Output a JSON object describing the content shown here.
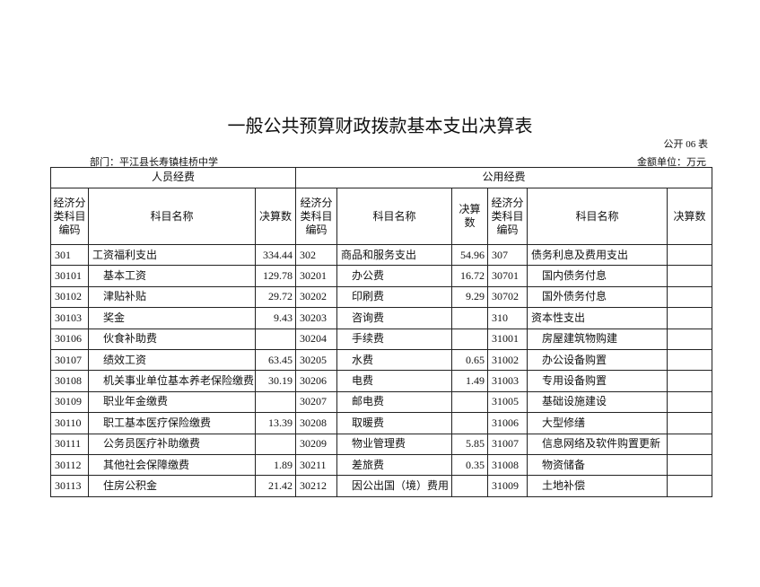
{
  "header": {
    "title": "一般公共预算财政拨款基本支出决算表",
    "form_no": "公开 06 表",
    "department": "部门：平江县长寿镇桂桥中学",
    "unit": "金额单位：万元"
  },
  "table": {
    "groups": [
      "人员经费",
      "公用经费"
    ],
    "columns": [
      "经济分类科目编码",
      "科目名称",
      "决算数",
      "经济分类科目编码",
      "科目名称",
      "决算数",
      "经济分类科目编码",
      "科目名称",
      "决算数"
    ],
    "rows": [
      [
        "301",
        "工资福利支出",
        334.44,
        "302",
        "商品和服务支出",
        54.96,
        "307",
        "债务利息及费用支出",
        null
      ],
      [
        "30101",
        "基本工资",
        129.78,
        "30201",
        "办公费",
        16.72,
        "30701",
        "国内债务付息",
        null
      ],
      [
        "30102",
        "津贴补贴",
        29.72,
        "30202",
        "印刷费",
        9.29,
        "30702",
        "国外债务付息",
        null
      ],
      [
        "30103",
        "奖金",
        9.43,
        "30203",
        "咨询费",
        null,
        "310",
        "资本性支出",
        null
      ],
      [
        "30106",
        "伙食补助费",
        null,
        "30204",
        "手续费",
        null,
        "31001",
        "房屋建筑物购建",
        null
      ],
      [
        "30107",
        "绩效工资",
        63.45,
        "30205",
        "水费",
        0.65,
        "31002",
        "办公设备购置",
        null
      ],
      [
        "30108",
        "机关事业单位基本养老保险缴费",
        30.19,
        "30206",
        "电费",
        1.49,
        "31003",
        "专用设备购置",
        null
      ],
      [
        "30109",
        "职业年金缴费",
        null,
        "30207",
        "邮电费",
        null,
        "31005",
        "基础设施建设",
        null
      ],
      [
        "30110",
        "职工基本医疗保险缴费",
        13.39,
        "30208",
        "取暖费",
        null,
        "31006",
        "大型修缮",
        null
      ],
      [
        "30111",
        "公务员医疗补助缴费",
        null,
        "30209",
        "物业管理费",
        5.85,
        "31007",
        "信息网络及软件购置更新",
        null
      ],
      [
        "30112",
        "其他社会保障缴费",
        1.89,
        "30211",
        "差旅费",
        0.35,
        "31008",
        "物资储备",
        null
      ],
      [
        "30113",
        "住房公积金",
        21.42,
        "30212",
        "因公出国（境）费用",
        null,
        "31009",
        "土地补偿",
        null
      ]
    ]
  }
}
